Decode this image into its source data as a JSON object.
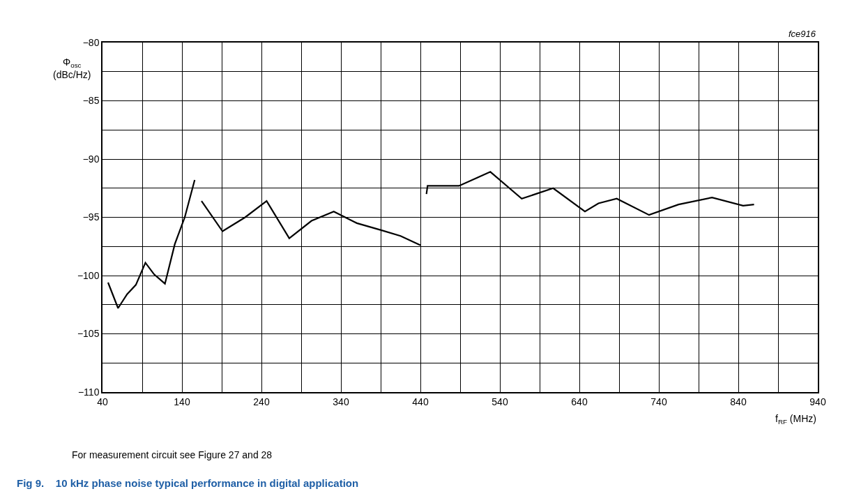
{
  "chart_data": {
    "type": "line",
    "title": "Fig 9.    10 kHz phase noise typical performance in digital application",
    "xlabel": "f$_{RF}$ (MHz)",
    "ylabel": "Φ$_{osc}$\n(dBc/Hz)",
    "annotations": [
      "fce916",
      "For measurement circuit see Figure 27 and 28"
    ],
    "series": [
      {
        "color": "#000000",
        "x": [
          47,
          59.6,
          71,
          82,
          94,
          105,
          118.6,
          131,
          143.5,
          156
        ],
        "values": [
          -100.6,
          -102.8,
          -101.6,
          -100.8,
          -98.9,
          -99.9,
          -100.7,
          -97.3,
          -95.0,
          -91.8
        ]
      },
      {
        "color": "#000000",
        "x": [
          164.6,
          191,
          219.5,
          246.5,
          275,
          303,
          331,
          360,
          390.5,
          415,
          440
        ],
        "values": [
          -93.6,
          -96.2,
          -95.0,
          -93.6,
          -96.8,
          -95.3,
          -94.5,
          -95.5,
          -96.1,
          -96.6,
          -97.4
        ]
      },
      {
        "color": "#000000",
        "x": [
          447.6,
          449,
          488.5,
          528,
          567.5,
          607,
          647,
          664,
          687,
          727.7,
          764.8,
          807,
          846,
          859.8
        ],
        "values": [
          -93.0,
          -92.3,
          -92.3,
          -91.1,
          -93.4,
          -92.5,
          -94.5,
          -93.8,
          -93.4,
          -94.8,
          -93.9,
          -93.3,
          -94.0,
          -93.9
        ]
      }
    ],
    "xlim": [
      40,
      940
    ],
    "xticks": [
      40,
      {
        "value": 90,
        "label": null
      },
      140,
      {
        "value": 190,
        "label": null
      },
      240,
      {
        "value": 290,
        "label": null
      },
      340,
      {
        "value": 390,
        "label": null
      },
      440,
      {
        "value": 490,
        "label": null
      },
      540,
      {
        "value": 590,
        "label": null
      },
      640,
      {
        "value": 690,
        "label": null
      },
      740,
      {
        "value": 790,
        "label": null
      },
      840,
      {
        "value": 890,
        "label": null
      },
      940
    ],
    "ylim": [
      -110,
      -80
    ],
    "yticks": [
      -110,
      {
        "value": -107.5,
        "label": null
      },
      -105,
      {
        "value": -102.5,
        "label": null
      },
      -100,
      {
        "value": -97.5,
        "label": null
      },
      -95,
      {
        "value": -92.5,
        "label": null
      },
      -90,
      {
        "value": -87.5,
        "label": null
      },
      -85,
      {
        "value": -82.5,
        "label": null
      },
      -80
    ],
    "grid": true,
    "marker": "none",
    "line_style": "solid"
  }
}
